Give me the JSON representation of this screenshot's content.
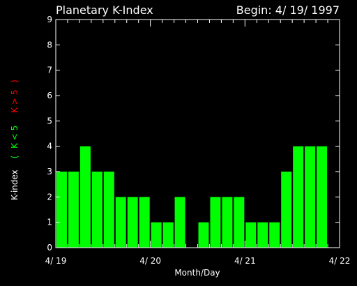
{
  "chart_data": {
    "type": "bar",
    "title": "Planetary K-Index",
    "begin_label": "Begin: 4/ 19/ 1997",
    "xlabel": "Month/Day",
    "ylabel": {
      "prefix": "K-index",
      "open": "(",
      "low_label": "K < 5",
      "high_label": "K > 5",
      "close": ")"
    },
    "ylim": [
      0,
      9
    ],
    "yticks": [
      "0",
      "1",
      "2",
      "3",
      "4",
      "5",
      "6",
      "7",
      "8",
      "9"
    ],
    "xlim": [
      0,
      24
    ],
    "xticks": [
      {
        "pos": 0,
        "label": "4/ 19"
      },
      {
        "pos": 8,
        "label": "4/ 20"
      },
      {
        "pos": 16,
        "label": "4/ 21"
      },
      {
        "pos": 24,
        "label": "4/ 22"
      }
    ],
    "x_minor_step": 1,
    "bar_interval": 1,
    "values": [
      3,
      3,
      4,
      3,
      3,
      2,
      2,
      2,
      1,
      1,
      2,
      0,
      1,
      2,
      2,
      2,
      1,
      1,
      1,
      3,
      4,
      4,
      4
    ],
    "colors": {
      "low": "#00ff00",
      "high": "#ff0000",
      "axes": "#ffffff",
      "background": "#000000"
    },
    "threshold": 5
  }
}
